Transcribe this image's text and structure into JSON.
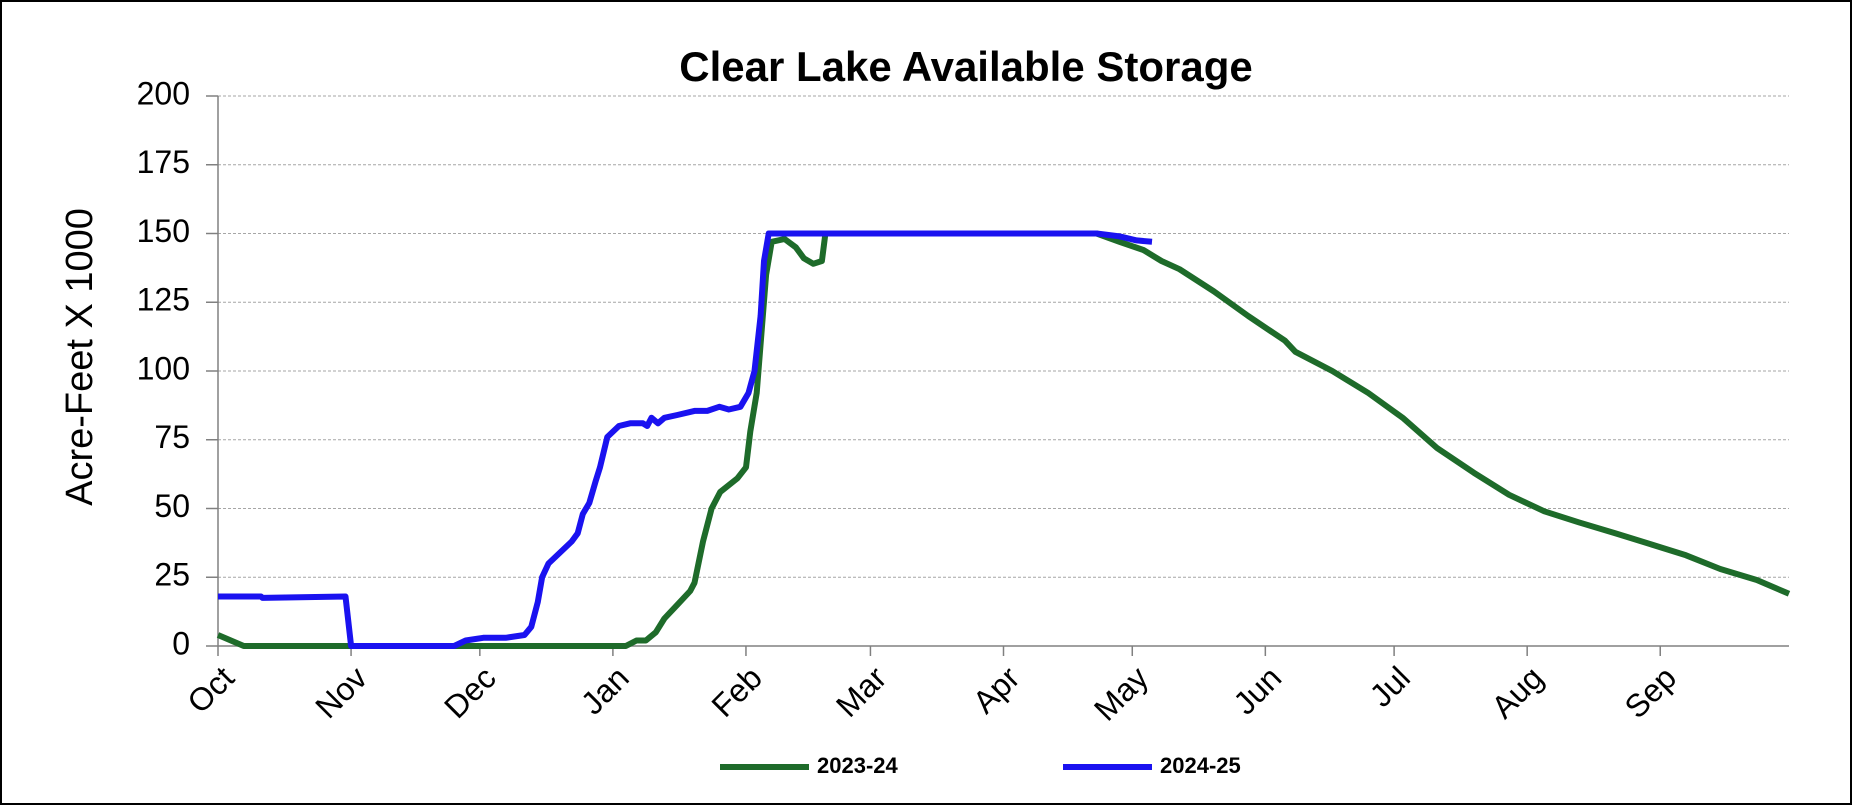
{
  "chart_data": {
    "type": "line",
    "title": "Clear Lake Available Storage",
    "y_label": "Acre-Feet X 1000",
    "xlim": [
      0,
      366
    ],
    "xticks": [
      {
        "value": 0,
        "label": "Oct"
      },
      {
        "value": 31,
        "label": "Nov"
      },
      {
        "value": 61,
        "label": "Dec"
      },
      {
        "value": 92,
        "label": "Jan"
      },
      {
        "value": 123,
        "label": "Feb"
      },
      {
        "value": 152,
        "label": "Mar"
      },
      {
        "value": 183,
        "label": "Apr"
      },
      {
        "value": 213,
        "label": "May"
      },
      {
        "value": 244,
        "label": "Jun"
      },
      {
        "value": 274,
        "label": "Jul"
      },
      {
        "value": 305,
        "label": "Aug"
      },
      {
        "value": 336,
        "label": "Sep"
      }
    ],
    "ylim": [
      0,
      200
    ],
    "yticks": [
      0,
      25,
      50,
      75,
      100,
      125,
      150,
      175,
      200
    ],
    "grid": true,
    "series": [
      {
        "name": "2023-24",
        "color": "#1e6b2a",
        "x": [
          0,
          6,
          95,
          97.5,
          99.7,
          102,
          104,
          107,
          110,
          111,
          113,
          115,
          117,
          121,
          123,
          124,
          125.5,
          127.7,
          129,
          132,
          134.6,
          136.5,
          138.7,
          140.7,
          141.5,
          204.7,
          210,
          215.6,
          219.8,
          224,
          232,
          240,
          248.6,
          251,
          259.6,
          268,
          276,
          284,
          292.6,
          296.7,
          300.8,
          309,
          317,
          325.5,
          333.8,
          342,
          350,
          358.5,
          366
        ],
        "values": [
          4,
          0,
          0,
          2,
          2,
          5,
          10,
          15,
          20,
          23,
          38,
          50,
          56,
          61,
          65,
          78,
          92,
          135,
          147,
          148,
          145,
          141,
          139,
          140,
          150,
          150,
          147,
          144,
          140,
          137,
          129,
          120,
          111,
          107,
          100,
          92,
          83,
          72,
          63,
          59,
          55,
          49,
          45,
          41,
          37,
          33,
          28,
          24,
          19
        ]
      },
      {
        "name": "2024-25",
        "color": "#1a12f0",
        "x": [
          0,
          10,
          10.4,
          29.7,
          31,
          55,
          57.7,
          61.8,
          67,
          71.4,
          73,
          74.5,
          75.5,
          77,
          79.7,
          82.4,
          83.8,
          85,
          86.5,
          88,
          89,
          90.7,
          93.4,
          96,
          99,
          100,
          101,
          102.5,
          104,
          107,
          111,
          114,
          116.8,
          119,
          121.7,
          123.6,
          125,
          126.4,
          127.2,
          128.3,
          204.7,
          210,
          214,
          217.6
        ],
        "values": [
          18,
          18,
          17.5,
          18,
          0,
          0,
          2,
          3,
          3,
          4,
          7,
          16,
          25,
          30,
          34,
          38,
          41,
          48,
          52,
          60,
          65,
          76,
          80,
          81,
          81,
          80,
          83,
          81,
          83,
          84,
          85.5,
          85.5,
          87,
          86,
          87,
          92,
          100,
          120,
          140,
          150,
          150,
          149,
          147.5,
          147
        ]
      }
    ]
  }
}
